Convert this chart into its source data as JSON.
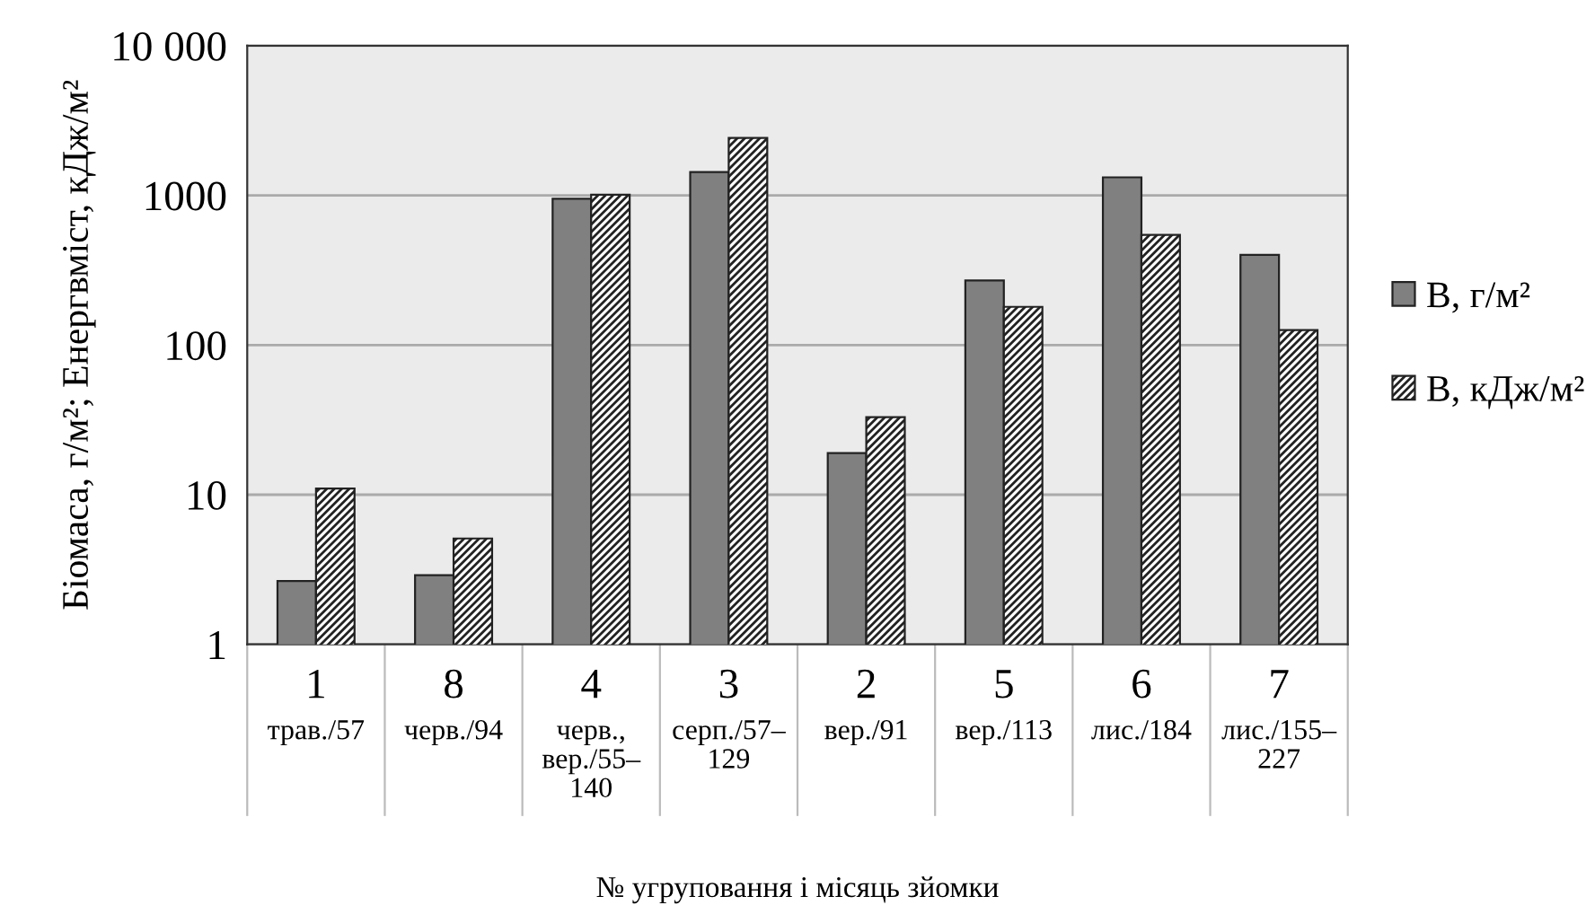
{
  "chart_data": {
    "type": "bar",
    "xlabel": "№ угруповання і місяць зйомки",
    "ylabel": "Біомаса, г/м²; Енергвміст, кДж/м²",
    "categories": [
      "1\nтрав./57",
      "8\nчерв./94",
      "4\nчерв.,\nвер./55–\n140",
      "3\nсерп./57–\n129",
      "2\nвер./91",
      "5\nвер./113",
      "6\nлис./184",
      "7\nлис./155–\n227"
    ],
    "series": [
      {
        "name": "B, г/м²",
        "color": "#808080",
        "values": [
          2.65,
          2.9,
          950,
          1430,
          19,
          270,
          1320,
          400
        ]
      },
      {
        "name": "B, кДж/м²",
        "color": "#222222",
        "values": [
          11,
          5.1,
          1010,
          2420,
          33,
          180,
          545,
          126
        ]
      }
    ],
    "log": true,
    "ylim": [
      1,
      10000
    ],
    "yticks": [
      1,
      10,
      100,
      1000,
      {
        "value": 10000,
        "label": "10 000"
      }
    ],
    "grid": "y",
    "legend": "right"
  }
}
